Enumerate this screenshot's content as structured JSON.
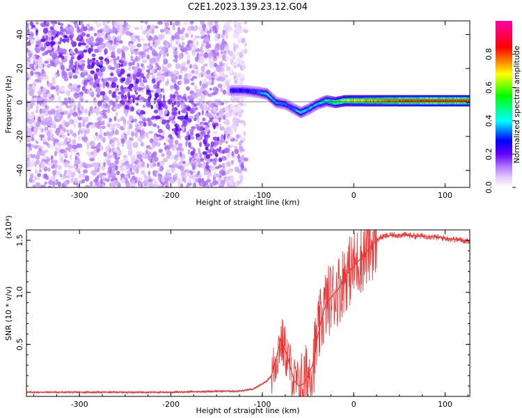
{
  "figure": {
    "title": "C2E1.2023.139.23.12.G04"
  },
  "chart_data": [
    {
      "type": "heatmap",
      "title": "C2E1.2023.139.23.12.G04",
      "xlabel": "Height of straight line (km)",
      "ylabel": "Frequency (Hz)",
      "xlim": [
        -358,
        127
      ],
      "ylim": [
        -50,
        48
      ],
      "x_ticks": [
        -300,
        -200,
        -100,
        0,
        100
      ],
      "x_tick_labels": [
        "-300",
        "-200",
        "-100",
        "0",
        "100"
      ],
      "y_ticks": [
        -40,
        -20,
        0,
        20,
        40
      ],
      "y_tick_labels": [
        "-40",
        "-20",
        "0",
        "20",
        "40"
      ],
      "colorbar": {
        "label": "Normalized spectral amplitude",
        "range": [
          0,
          1
        ],
        "ticks": [
          0.0,
          0.2,
          0.4,
          0.6,
          0.8
        ],
        "tick_labels": [
          "0.0",
          "0.2",
          "0.4",
          "0.6",
          "0.8"
        ],
        "colors": [
          "#ffffff",
          "#e6ccff",
          "#b380ff",
          "#6600ff",
          "#0000ff",
          "#00ffff",
          "#00ff00",
          "#ffff00",
          "#ff0000",
          "#ff00aa"
        ]
      },
      "noise_region_x": [
        -358,
        -118
      ],
      "signal_trace": {
        "x": [
          -135,
          -120,
          -105,
          -95,
          -85,
          -75,
          -65,
          -58,
          -50,
          -40,
          -30,
          -20,
          -10,
          0,
          20,
          40,
          60,
          80,
          100,
          127
        ],
        "y": [
          7,
          7,
          6,
          5,
          0,
          -1,
          -4,
          -6,
          -4,
          -1,
          1,
          0,
          1,
          1,
          1,
          1,
          1,
          1,
          1,
          1
        ],
        "amplitude": [
          0.3,
          0.3,
          0.35,
          0.45,
          0.4,
          0.35,
          0.35,
          0.45,
          0.4,
          0.4,
          0.5,
          0.6,
          0.7,
          0.75,
          0.8,
          0.85,
          0.9,
          0.92,
          0.92,
          0.9
        ]
      }
    },
    {
      "type": "line",
      "xlabel": "Height of straight line (km)",
      "ylabel": "SNR (10 * v/v)",
      "scale_label": "(x10⁴)",
      "color": "#ee3333",
      "xlim": [
        -358,
        127
      ],
      "ylim": [
        0.0,
        1.6
      ],
      "x_ticks": [
        -300,
        -200,
        -100,
        0,
        100
      ],
      "x_tick_labels": [
        "-300",
        "-200",
        "-100",
        "0",
        "100"
      ],
      "y_ticks": [
        0.5,
        1.0,
        1.5
      ],
      "y_tick_labels": [
        "0.5",
        "1.0",
        "1.5"
      ],
      "series": [
        {
          "x": [
            -358,
            -300,
            -250,
            -200,
            -150,
            -125,
            -110,
            -100,
            -95,
            -90,
            -85,
            -80,
            -75,
            -70,
            -65,
            -60,
            -55,
            -50,
            -45,
            -40,
            -35,
            -30,
            -25,
            -20,
            -15,
            -10,
            -5,
            0,
            5,
            10,
            15,
            20,
            25,
            30,
            40,
            50,
            60,
            70,
            80,
            90,
            100,
            110,
            120,
            127
          ],
          "y": [
            0.04,
            0.04,
            0.04,
            0.04,
            0.05,
            0.05,
            0.07,
            0.12,
            0.15,
            0.2,
            0.35,
            0.55,
            0.45,
            0.3,
            0.15,
            0.1,
            0.12,
            0.2,
            0.3,
            0.55,
            0.75,
            0.9,
            0.95,
            1.0,
            1.05,
            1.15,
            1.2,
            1.25,
            1.3,
            1.35,
            1.4,
            1.45,
            1.5,
            1.53,
            1.55,
            1.55,
            1.55,
            1.54,
            1.54,
            1.53,
            1.52,
            1.51,
            1.5,
            1.49
          ]
        }
      ]
    }
  ]
}
